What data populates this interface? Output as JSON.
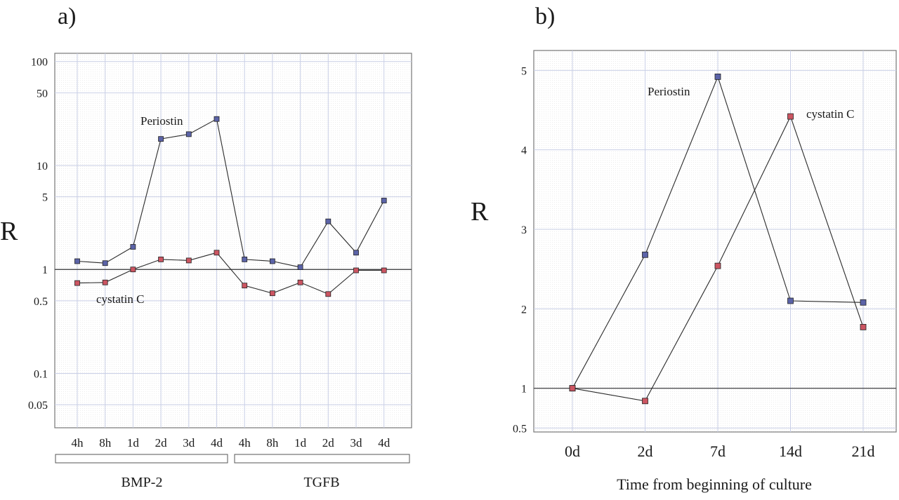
{
  "chart_data": [
    {
      "panel_label": "a)",
      "type": "line",
      "ylabel": "R",
      "y_scale": "log",
      "ylim": [
        0.03,
        120
      ],
      "yticks": [
        {
          "value": 100,
          "label": "100"
        },
        {
          "value": 50,
          "label": "50"
        },
        {
          "value": 10,
          "label": "10"
        },
        {
          "value": 5,
          "label": "5"
        },
        {
          "value": 1,
          "label": "1"
        },
        {
          "value": 0.5,
          "label": "0.5"
        },
        {
          "value": 0.1,
          "label": "0.1"
        },
        {
          "value": 0.05,
          "label": "0.05"
        }
      ],
      "reference_line": 1,
      "grid": true,
      "categories": [
        "4h",
        "8h",
        "1d",
        "2d",
        "3d",
        "4d",
        "4h",
        "8h",
        "1d",
        "2d",
        "3d",
        "4d"
      ],
      "groups": [
        {
          "label": "BMP-2",
          "start": 0,
          "end": 5
        },
        {
          "label": "TGFB",
          "start": 6,
          "end": 11
        }
      ],
      "series": [
        {
          "name": "Periostin",
          "color": "#5b63a8",
          "values": [
            1.2,
            1.15,
            1.65,
            18,
            20,
            28,
            1.25,
            1.2,
            1.05,
            2.9,
            1.45,
            4.6
          ]
        },
        {
          "name": "cystatin C",
          "color": "#cc5562",
          "values": [
            0.74,
            0.75,
            1.0,
            1.25,
            1.22,
            1.45,
            0.7,
            0.59,
            0.75,
            0.58,
            0.98,
            0.98
          ]
        }
      ]
    },
    {
      "panel_label": "b)",
      "type": "line",
      "ylabel": "R",
      "xlabel": "Time from beginning of culture",
      "ylim": [
        0.45,
        5.25
      ],
      "yticks": [
        {
          "value": 5,
          "label": "5"
        },
        {
          "value": 4,
          "label": "4"
        },
        {
          "value": 3,
          "label": "3"
        },
        {
          "value": 2,
          "label": "2"
        },
        {
          "value": 1,
          "label": "1"
        },
        {
          "value": 0.5,
          "label": "0.5"
        }
      ],
      "reference_line": 1,
      "grid": true,
      "categories": [
        "0d",
        "2d",
        "7d",
        "14d",
        "21d"
      ],
      "series": [
        {
          "name": "Periostin",
          "color": "#5b63a8",
          "values": [
            1.0,
            2.68,
            4.92,
            2.1,
            2.08
          ]
        },
        {
          "name": "cystatin C",
          "color": "#cc5562",
          "values": [
            1.0,
            0.84,
            2.54,
            4.42,
            1.77
          ]
        }
      ]
    }
  ]
}
